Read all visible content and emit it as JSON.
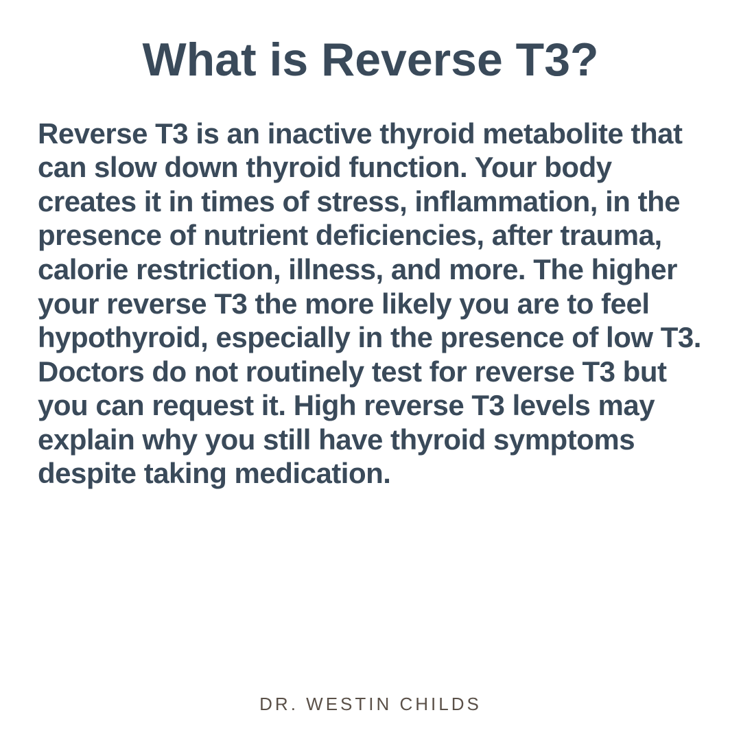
{
  "title": "What is Reverse T3?",
  "body": "Reverse T3 is an inactive thyroid metabolite that can slow down thyroid function. Your body creates it in times of stress, inflammation, in the presence of nutrient deficiencies, after trauma, calorie restriction, illness, and more. The higher your reverse T3 the more likely you are to feel hypothyroid, especially in the presence of low T3. Doctors do not routinely test for reverse T3 but you can request it. High reverse T3 levels may explain why you still have thyroid symptoms despite taking medication.",
  "footer": "DR. WESTIN CHILDS",
  "colors": {
    "text": "#3a4a5a",
    "footer_text": "#5a5048",
    "background": "#ffffff"
  },
  "typography": {
    "title_fontsize": 68,
    "title_weight": 800,
    "body_fontsize": 42,
    "body_weight": 700,
    "footer_fontsize": 26,
    "footer_letter_spacing": 4
  }
}
